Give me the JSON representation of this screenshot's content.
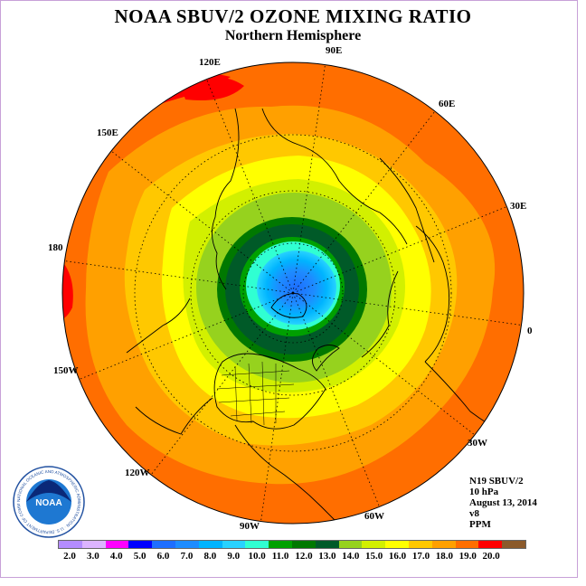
{
  "title": "NOAA SBUV/2 OZONE MIXING RATIO",
  "subtitle": "Northern Hemisphere",
  "longitude_labels": [
    "90E",
    "60E",
    "30E",
    "0",
    "30W",
    "60W",
    "90W",
    "120W",
    "150W",
    "180",
    "150E",
    "120E"
  ],
  "info": {
    "satellite": "N19 SBUV/2",
    "level": "10 hPa",
    "date": "August 13, 2014",
    "version": "v8",
    "units": "PPM"
  },
  "logo": {
    "text": "NOAA",
    "ring_text": "NATIONAL OCEANIC AND ATMOSPHERIC ADMINISTRATION · U.S. DEPARTMENT OF COMMERCE"
  },
  "colorbar": {
    "ticks": [
      "2.0",
      "3.0",
      "4.0",
      "5.0",
      "6.0",
      "7.0",
      "8.0",
      "9.0",
      "10.0",
      "11.0",
      "12.0",
      "13.0",
      "14.0",
      "15.0",
      "16.0",
      "17.0",
      "18.0",
      "19.0",
      "20.0"
    ],
    "colors": [
      "#b48cff",
      "#dcb4ff",
      "#ff00ff",
      "#0000ff",
      "#1e6eff",
      "#1e8cff",
      "#00b4ff",
      "#28d2ff",
      "#30ffd2",
      "#00a000",
      "#007800",
      "#005a28",
      "#96d21e",
      "#d2f000",
      "#ffff00",
      "#ffc800",
      "#ffa000",
      "#ff6e00",
      "#ff0000",
      "#8b5a2b"
    ]
  },
  "map_data": {
    "projection": "north polar stereographic",
    "field": "ozone mixing ratio (ppm) at 10 hPa",
    "pattern": "minimum of about 7-10 ppm over the pole (blue/cyan), a dark green ring of 11-12 ppm near 70N, rising to 16-17 ppm (orange) at the equatorial edge, with 18-19 ppm maxima (red) near 120E-180 at the rim"
  }
}
